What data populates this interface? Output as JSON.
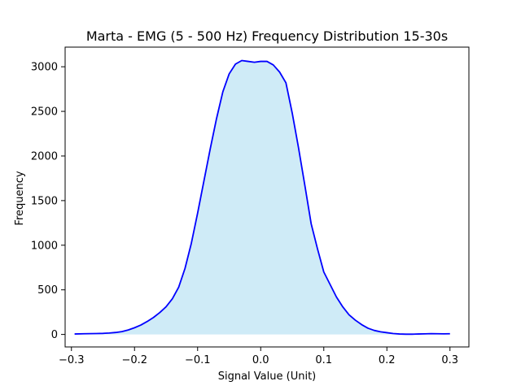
{
  "chart_data": {
    "type": "area",
    "title": "Marta - EMG (5 - 500 Hz) Frequency Distribution 15-30s",
    "xlabel": "Signal Value (Unit)",
    "ylabel": "Frequency",
    "xlim": [
      -0.31,
      0.33
    ],
    "ylim": [
      -140,
      3220
    ],
    "x_ticks": [
      -0.3,
      -0.2,
      -0.1,
      0.0,
      0.1,
      0.2,
      0.3
    ],
    "x_tick_labels": [
      "−0.3",
      "−0.2",
      "−0.1",
      "0.0",
      "0.1",
      "0.2",
      "0.3"
    ],
    "y_ticks": [
      0,
      500,
      1000,
      1500,
      2000,
      2500,
      3000
    ],
    "y_tick_labels": [
      "0",
      "500",
      "1000",
      "1500",
      "2000",
      "2500",
      "3000"
    ],
    "grid": false,
    "legend": "none",
    "line_color": "#0000ff",
    "fill_color": "#87ceeb",
    "series": [
      {
        "x": [
          -0.295,
          -0.28,
          -0.26,
          -0.25,
          -0.24,
          -0.23,
          -0.22,
          -0.21,
          -0.2,
          -0.19,
          -0.18,
          -0.17,
          -0.16,
          -0.15,
          -0.14,
          -0.13,
          -0.12,
          -0.11,
          -0.1,
          -0.09,
          -0.08,
          -0.07,
          -0.06,
          -0.05,
          -0.04,
          -0.03,
          -0.02,
          -0.01,
          0.0,
          0.01,
          0.02,
          0.03,
          0.04,
          0.05,
          0.06,
          0.07,
          0.08,
          0.09,
          0.1,
          0.11,
          0.12,
          0.13,
          0.14,
          0.15,
          0.16,
          0.17,
          0.18,
          0.19,
          0.2,
          0.21,
          0.22,
          0.23,
          0.24,
          0.25,
          0.26,
          0.27,
          0.28,
          0.29,
          0.3
        ],
        "values": [
          5,
          8,
          10,
          12,
          16,
          22,
          32,
          50,
          75,
          105,
          145,
          190,
          245,
          310,
          400,
          530,
          740,
          1020,
          1360,
          1720,
          2080,
          2420,
          2720,
          2920,
          3030,
          3070,
          3060,
          3050,
          3060,
          3060,
          3020,
          2940,
          2820,
          2480,
          2090,
          1670,
          1240,
          960,
          700,
          560,
          420,
          310,
          220,
          160,
          110,
          70,
          45,
          30,
          20,
          10,
          5,
          3,
          3,
          5,
          7,
          9,
          8,
          7,
          8
        ]
      }
    ]
  }
}
